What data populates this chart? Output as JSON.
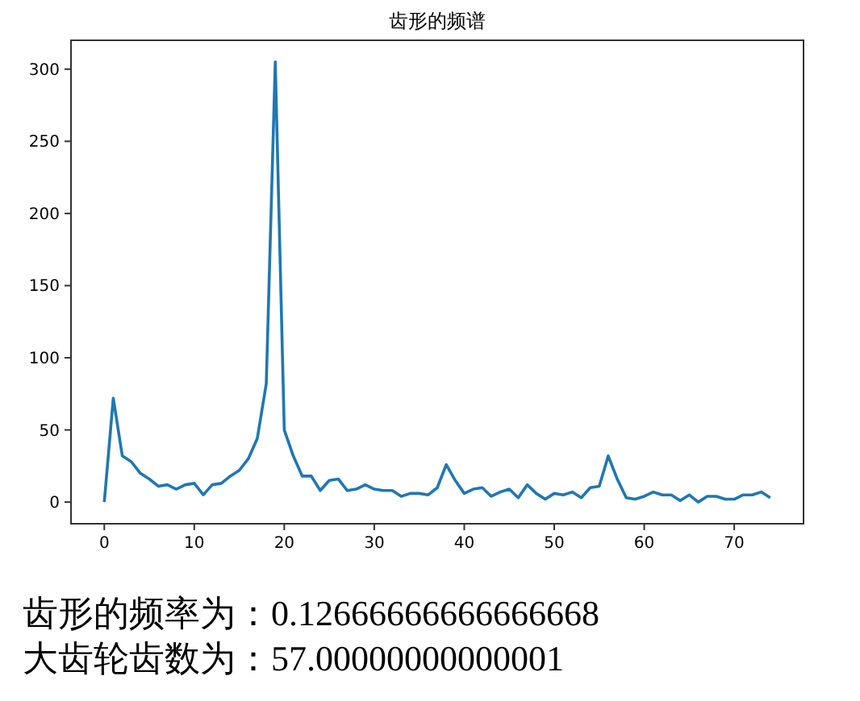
{
  "chart_data": {
    "type": "line",
    "title": "齿形的频谱",
    "x": [
      0,
      1,
      2,
      3,
      4,
      5,
      6,
      7,
      8,
      9,
      10,
      11,
      12,
      13,
      14,
      15,
      16,
      17,
      18,
      19,
      20,
      21,
      22,
      23,
      24,
      25,
      26,
      27,
      28,
      29,
      30,
      31,
      32,
      33,
      34,
      35,
      36,
      37,
      38,
      39,
      40,
      41,
      42,
      43,
      44,
      45,
      46,
      47,
      48,
      49,
      50,
      51,
      52,
      53,
      54,
      55,
      56,
      57,
      58,
      59,
      60,
      61,
      62,
      63,
      64,
      65,
      66,
      67,
      68,
      69,
      70,
      71,
      72,
      73,
      74
    ],
    "series": [
      {
        "color": "#1f77b4",
        "values": [
          0,
          72,
          32,
          28,
          20,
          16,
          11,
          12,
          9,
          12,
          13,
          5,
          12,
          13,
          18,
          22,
          30,
          44,
          82,
          305,
          50,
          32,
          18,
          18,
          8,
          15,
          16,
          8,
          9,
          12,
          9,
          8,
          8,
          4,
          6,
          6,
          5,
          10,
          26,
          15,
          6,
          9,
          10,
          4,
          7,
          9,
          3,
          12,
          6,
          2,
          6,
          5,
          7,
          3,
          10,
          11,
          32,
          16,
          3,
          2,
          4,
          7,
          5,
          5,
          1,
          5,
          0,
          4,
          4,
          2,
          2,
          5,
          5,
          7,
          3
        ]
      }
    ],
    "xlim": [
      -3.7,
      77.7
    ],
    "ylim": [
      -15,
      320
    ],
    "xticks": [
      0,
      10,
      20,
      30,
      40,
      50,
      60,
      70
    ],
    "yticks": [
      0,
      50,
      100,
      150,
      200,
      250,
      300
    ],
    "annotations": [
      "齿形的频率为：0.12666666666666668",
      "大齿轮齿数为：57.00000000000001"
    ]
  }
}
